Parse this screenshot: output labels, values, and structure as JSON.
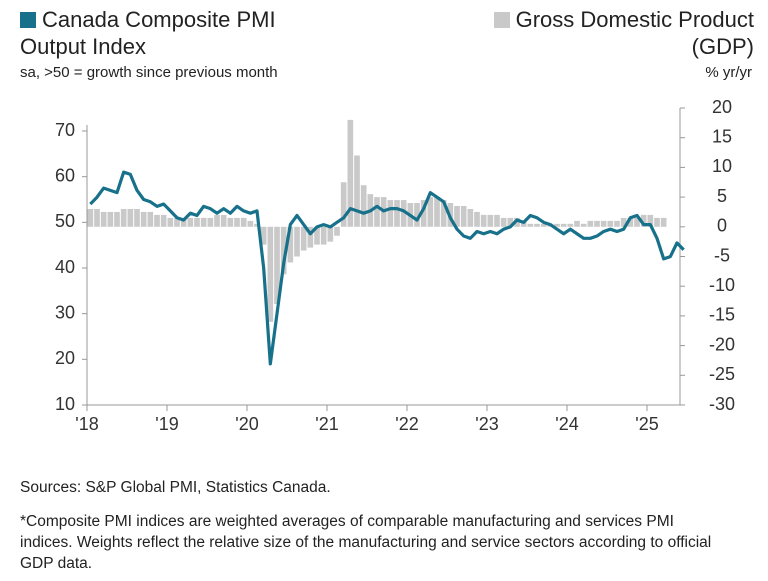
{
  "chart_data": {
    "type": "combo",
    "ylabel": "sa, >50 = growth since previous month",
    "y2label": "% yr/yr",
    "source": "Sources: S&P Global PMI, Statistics Canada.",
    "footnote": "*Composite PMI indices are weighted averages of comparable manufacturing and services PMI indices. Weights reflect the relative size of the manufacturing and service sectors according to official GDP data.",
    "categories": [
      "'18",
      null,
      null,
      null,
      null,
      null,
      null,
      null,
      null,
      null,
      null,
      null,
      "'19",
      null,
      null,
      null,
      null,
      null,
      null,
      null,
      null,
      null,
      null,
      null,
      "'20",
      null,
      null,
      null,
      null,
      null,
      null,
      null,
      null,
      null,
      null,
      null,
      "'21",
      null,
      null,
      null,
      null,
      null,
      null,
      null,
      null,
      null,
      null,
      null,
      "'22",
      null,
      null,
      null,
      null,
      null,
      null,
      null,
      null,
      null,
      null,
      null,
      "'23",
      null,
      null,
      null,
      null,
      null,
      null,
      null,
      null,
      null,
      null,
      null,
      "'24",
      null,
      null,
      null,
      null,
      null,
      null,
      null,
      null,
      null,
      null,
      null,
      "'25",
      null,
      null,
      null,
      null,
      null
    ],
    "series": [
      {
        "name": "Gross Domestic Product (GDP)",
        "type": "bar",
        "axis": "y2",
        "color": "#c9c9c9",
        "values": [
          3,
          3,
          2.5,
          2.5,
          2.5,
          3,
          3,
          3,
          2.5,
          2.5,
          2,
          2,
          1.5,
          1.5,
          1.5,
          1.5,
          1.5,
          1.5,
          1.5,
          2,
          2,
          1.5,
          1.5,
          1.5,
          1,
          0.5,
          -3,
          -16,
          -13,
          -8,
          -6,
          -5,
          -4,
          -3.5,
          -3,
          -3,
          -2.5,
          -1.5,
          7.5,
          18,
          12,
          7,
          5.5,
          5,
          5,
          4.5,
          4.5,
          4.5,
          4,
          4,
          4.5,
          5,
          5,
          4.5,
          4,
          3.5,
          3.5,
          3,
          2.5,
          2,
          2,
          2,
          1.5,
          1.5,
          1.5,
          1,
          0.5,
          0.5,
          0.5,
          0.5,
          0.5,
          0.5,
          0.5,
          1,
          0.5,
          1,
          1,
          1,
          1,
          1,
          1.5,
          1.5,
          1.5,
          2,
          2,
          1.5,
          1.5,
          null,
          null,
          null
        ]
      },
      {
        "name": "Canada Composite PMI Output Index",
        "type": "line",
        "axis": "y",
        "color": "#17718a",
        "values": [
          54,
          55.5,
          57.5,
          57,
          56.5,
          61,
          60.5,
          57,
          55,
          54.5,
          53.5,
          54,
          52.5,
          51,
          50.5,
          52,
          51.5,
          53.5,
          53,
          52,
          53,
          52,
          53.5,
          52.5,
          52,
          52.5,
          40,
          19,
          30,
          41,
          49.5,
          51.5,
          49.5,
          47.5,
          49,
          49.5,
          49,
          50,
          51,
          53,
          52.5,
          52,
          52.5,
          53.5,
          52.5,
          53,
          53,
          52.5,
          51.5,
          50.5,
          53,
          56.5,
          55.5,
          54.5,
          51,
          48.5,
          47,
          46.5,
          48,
          47.5,
          48,
          47.5,
          48.5,
          49,
          50.5,
          50,
          51.5,
          51,
          50,
          49.5,
          48.5,
          47.5,
          48.5,
          47.5,
          46.5,
          46.5,
          47,
          48,
          48.5,
          48,
          48.5,
          51,
          51.5,
          49.5,
          49.5,
          46.5,
          42,
          42.5,
          45.5,
          44
        ]
      }
    ],
    "ylim": [
      10,
      70
    ],
    "yticks": [
      10,
      20,
      30,
      40,
      50,
      60,
      70
    ],
    "y2lim": [
      -30,
      20
    ],
    "y2ticks": [
      -30,
      -25,
      -20,
      -15,
      -10,
      -5,
      0,
      5,
      10,
      15,
      20
    ]
  }
}
